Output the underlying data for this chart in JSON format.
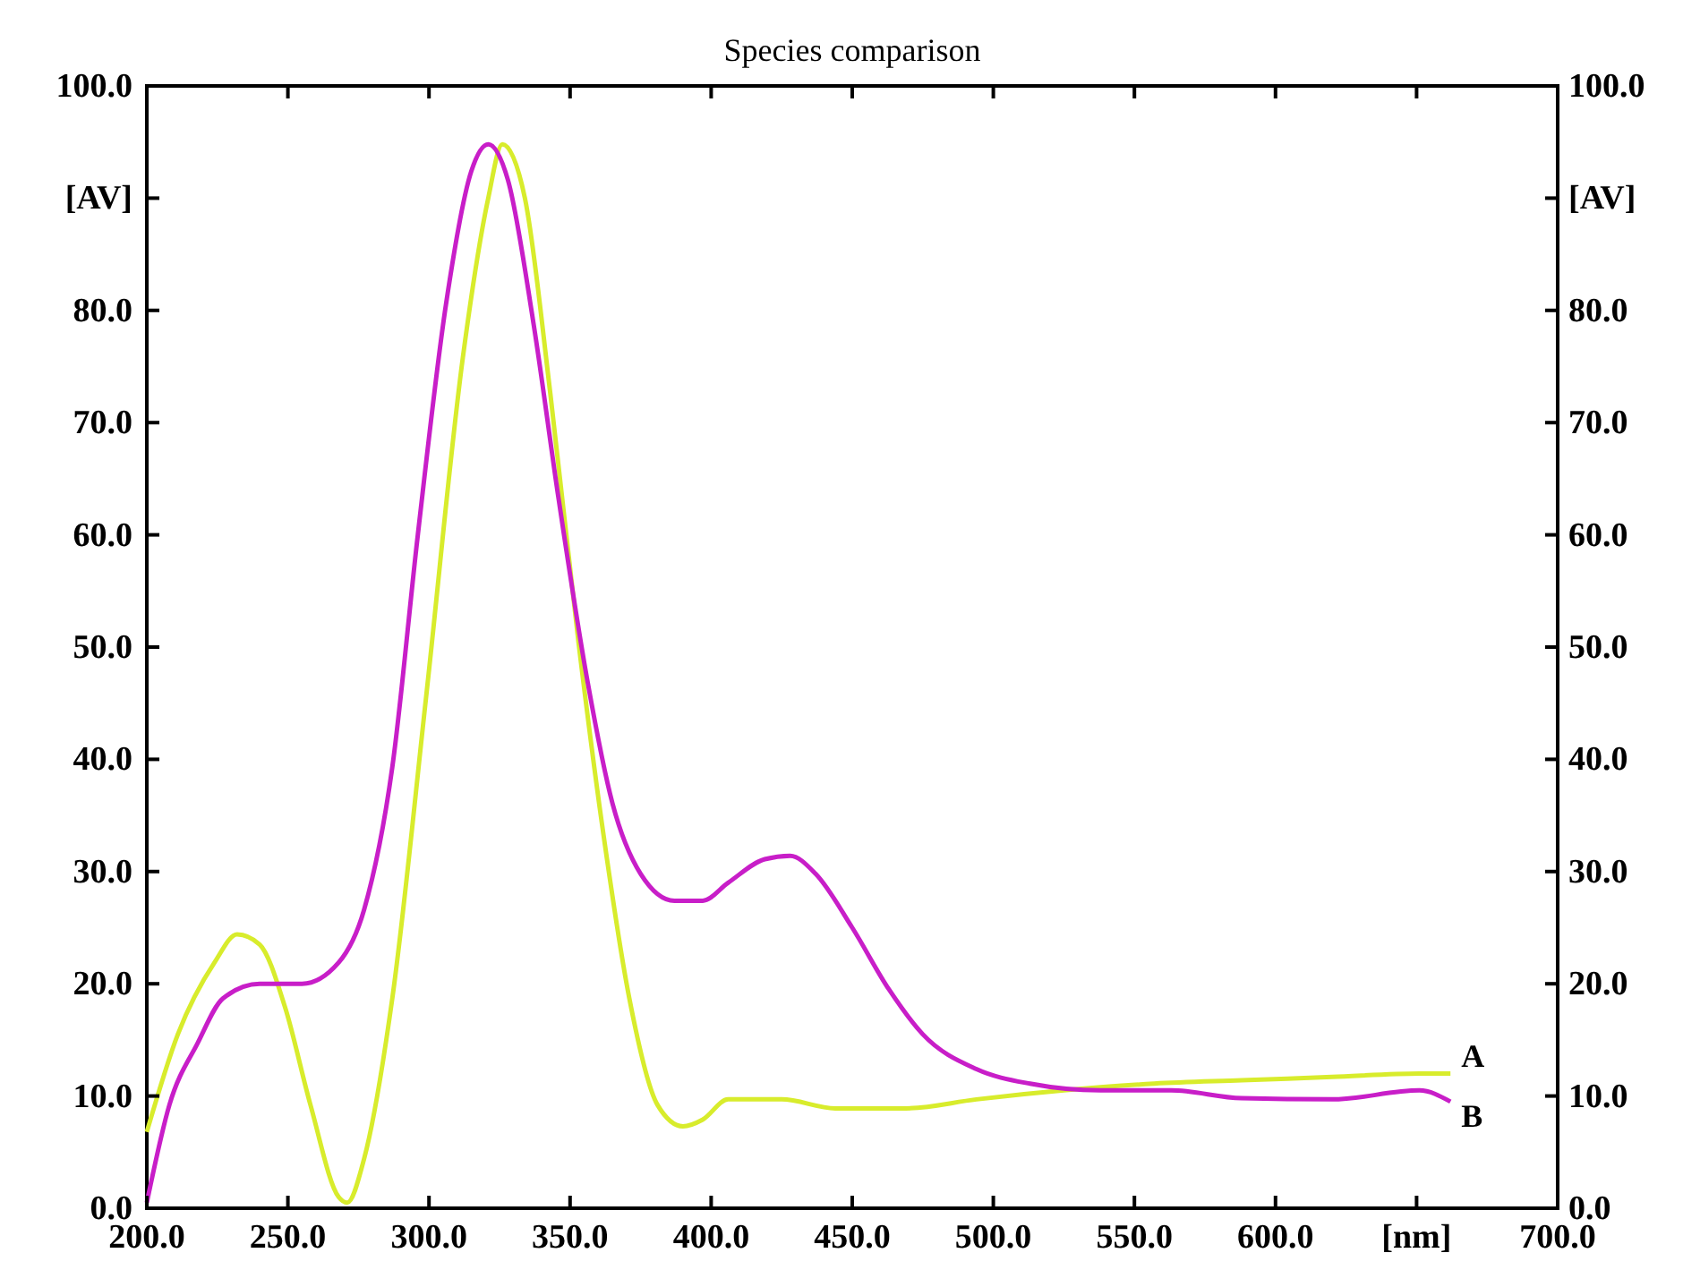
{
  "chart_data": {
    "type": "line",
    "title": "Species comparison",
    "xlim": [
      200,
      700
    ],
    "xticks": [
      {
        "value": 200,
        "label": "200.0"
      },
      {
        "value": 250,
        "label": "250.0"
      },
      {
        "value": 300,
        "label": "300.0"
      },
      {
        "value": 350,
        "label": "350.0"
      },
      {
        "value": 400,
        "label": "400.0"
      },
      {
        "value": 450,
        "label": "450.0"
      },
      {
        "value": 500,
        "label": "500.0"
      },
      {
        "value": 550,
        "label": "550.0"
      },
      {
        "value": 600,
        "label": "600.0"
      },
      {
        "value": 650,
        "label": "[nm]"
      },
      {
        "value": 700,
        "label": "700.0"
      }
    ],
    "ylim": [
      0,
      100
    ],
    "yticks": [
      {
        "value": 0,
        "label": "0.0"
      },
      {
        "value": 10,
        "label": "10.0"
      },
      {
        "value": 20,
        "label": "20.0"
      },
      {
        "value": 30,
        "label": "30.0"
      },
      {
        "value": 40,
        "label": "40.0"
      },
      {
        "value": 50,
        "label": "50.0"
      },
      {
        "value": 60,
        "label": "60.0"
      },
      {
        "value": 70,
        "label": "70.0"
      },
      {
        "value": 80,
        "label": "80.0"
      },
      {
        "value": 90,
        "label": "[AV]"
      },
      {
        "value": 100,
        "label": "100.0"
      }
    ],
    "y2lim": [
      0,
      100
    ],
    "y2ticks": [
      {
        "value": 0,
        "label": "0.0"
      },
      {
        "value": 10,
        "label": "10.0"
      },
      {
        "value": 20,
        "label": "20.0"
      },
      {
        "value": 30,
        "label": "30.0"
      },
      {
        "value": 40,
        "label": "40.0"
      },
      {
        "value": 50,
        "label": "50.0"
      },
      {
        "value": 60,
        "label": "60.0"
      },
      {
        "value": 70,
        "label": "70.0"
      },
      {
        "value": 80,
        "label": "80.0"
      },
      {
        "value": 90,
        "label": "[AV]"
      },
      {
        "value": 100,
        "label": "100.0"
      }
    ],
    "grid": false,
    "marker": "none",
    "line_style": "solid",
    "series": [
      {
        "name": "A",
        "color": "#d8ec2c",
        "x": [
          200,
          211,
          224,
          232,
          240,
          249,
          258,
          268,
          271,
          277,
          287,
          299,
          312,
          321,
          326,
          334,
          343,
          353,
          362,
          371,
          381,
          390,
          397,
          406,
          425,
          444,
          469,
          494,
          525,
          557,
          588,
          620,
          651,
          662
        ],
        "values": [
          6.8,
          15.5,
          21.9,
          24.4,
          23.5,
          17.9,
          9.2,
          1,
          0.5,
          4.4,
          18.7,
          45.6,
          75.8,
          90,
          94.8,
          90,
          72.6,
          50.4,
          33,
          18.7,
          9.2,
          7.3,
          7.9,
          9.7,
          9.7,
          8.9,
          8.9,
          9.7,
          10.5,
          11.1,
          11.4,
          11.7,
          12,
          12
        ]
      },
      {
        "name": "B",
        "color": "#c81ec8",
        "x": [
          200,
          208,
          218,
          227,
          240,
          255,
          268,
          277,
          287,
          296,
          306,
          315,
          321,
          328,
          337,
          346,
          356,
          365,
          375,
          387,
          397,
          406,
          419,
          428,
          437,
          450,
          463,
          475,
          494,
          513,
          538,
          563,
          588,
          620,
          651,
          662
        ],
        "values": [
          0.5,
          9.2,
          14.7,
          18.7,
          20,
          20,
          21.9,
          26.6,
          39.3,
          59.9,
          80.5,
          92.4,
          94.8,
          91.6,
          78.9,
          63.1,
          47.2,
          36.1,
          29.8,
          27.4,
          27.4,
          29,
          31.1,
          31.4,
          29.8,
          25,
          19.5,
          15.5,
          12.4,
          11.1,
          10.5,
          10.5,
          9.8,
          9.7,
          10.5,
          9.5
        ]
      }
    ]
  }
}
